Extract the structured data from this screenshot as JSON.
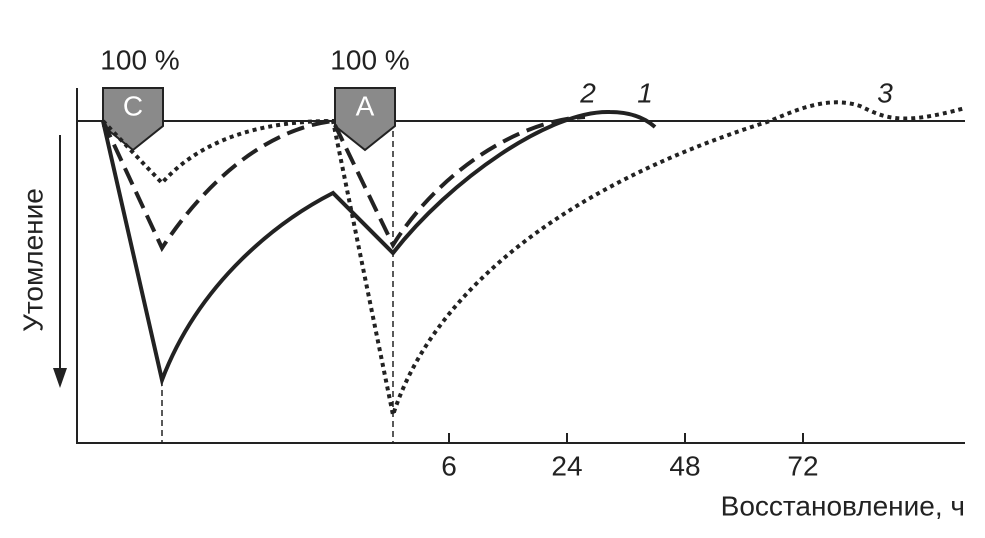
{
  "markers": [
    {
      "percent": "100 %",
      "label": "C"
    },
    {
      "percent": "100 %",
      "label": "A"
    }
  ],
  "curve_labels": [
    "1",
    "2",
    "3"
  ],
  "x_axis": {
    "title": "Восстановление, ч",
    "ticks": [
      "6",
      "24",
      "48",
      "72"
    ]
  },
  "y_axis": {
    "title": "Утомление"
  }
}
